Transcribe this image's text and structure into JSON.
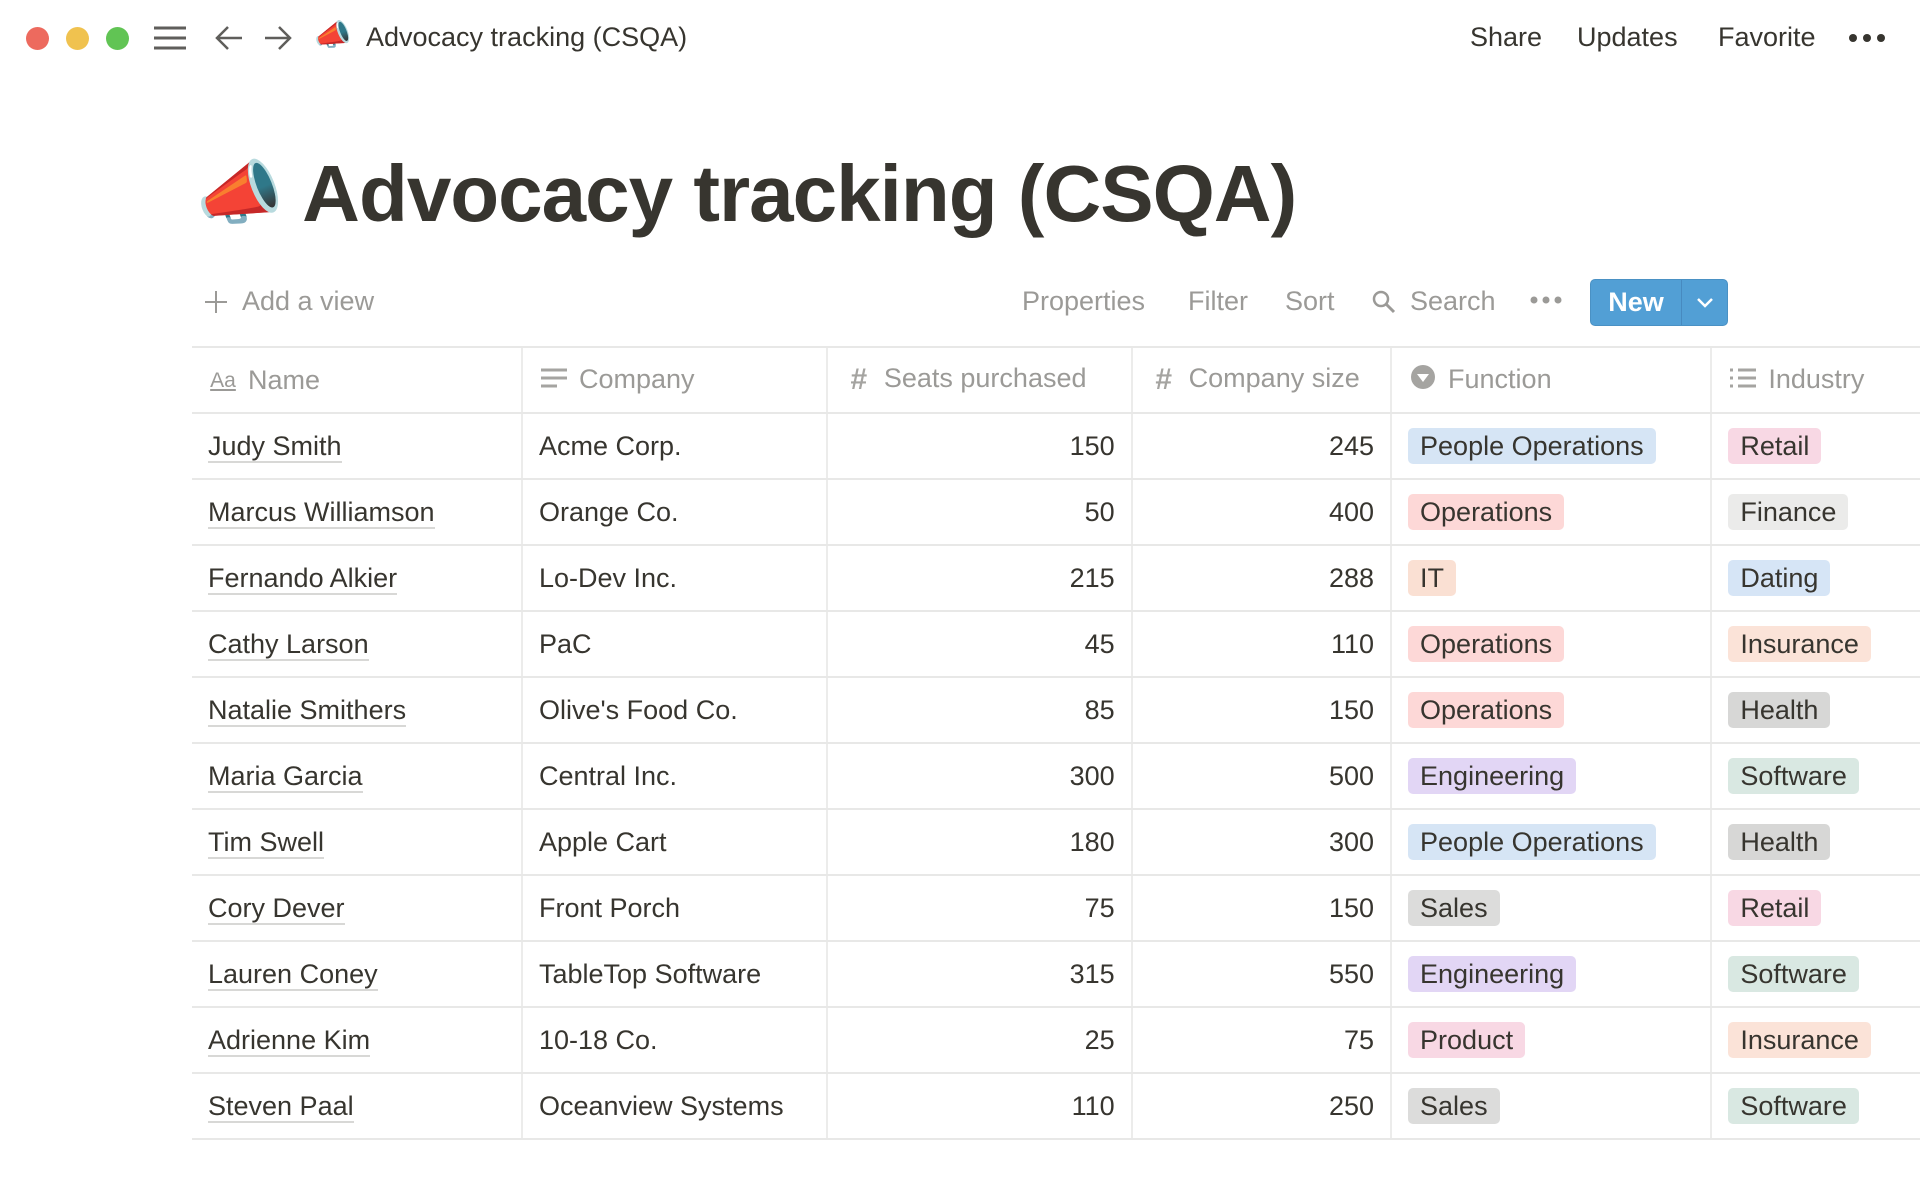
{
  "topbar": {
    "title": "Advocacy tracking (CSQA)",
    "share": "Share",
    "updates": "Updates",
    "favorite": "Favorite",
    "emoji": "📣"
  },
  "page": {
    "title": "Advocacy tracking (CSQA)",
    "emoji": "📣"
  },
  "toolbar": {
    "add_view": "Add a view",
    "properties": "Properties",
    "filter": "Filter",
    "sort": "Sort",
    "search": "Search",
    "new": "New"
  },
  "columns": [
    "Name",
    "Company",
    "Seats purchased",
    "Company size",
    "Function",
    "Industry"
  ],
  "tag_colors": {
    "People Operations": "#d6e5f5",
    "Operations": "#fdd8d7",
    "IT": "#fae0d3",
    "Engineering": "#e2d6f5",
    "Sales": "#dcdcdb",
    "Product": "#f8d8e4",
    "Retail": "#f8d8e4",
    "Finance": "#ebebea",
    "Dating": "#d6e5f6",
    "Insurance": "#fbe3d8",
    "Health": "#d7d7d6",
    "Software": "#d9e8e2"
  },
  "rows": [
    {
      "name": "Judy Smith",
      "company": "Acme Corp.",
      "seats": "150",
      "size": "245",
      "function": "People Operations",
      "industry": "Retail"
    },
    {
      "name": "Marcus Williamson",
      "company": "Orange Co.",
      "seats": "50",
      "size": "400",
      "function": "Operations",
      "industry": "Finance"
    },
    {
      "name": "Fernando Alkier",
      "company": "Lo-Dev Inc.",
      "seats": "215",
      "size": "288",
      "function": "IT",
      "industry": "Dating"
    },
    {
      "name": "Cathy Larson",
      "company": "PaC",
      "seats": "45",
      "size": "110",
      "function": "Operations",
      "industry": "Insurance"
    },
    {
      "name": "Natalie Smithers",
      "company": "Olive's Food Co.",
      "seats": "85",
      "size": "150",
      "function": "Operations",
      "industry": "Health"
    },
    {
      "name": "Maria Garcia",
      "company": "Central Inc.",
      "seats": "300",
      "size": "500",
      "function": "Engineering",
      "industry": "Software"
    },
    {
      "name": "Tim Swell",
      "company": "Apple Cart",
      "seats": "180",
      "size": "300",
      "function": "People Operations",
      "industry": "Health"
    },
    {
      "name": "Cory Dever",
      "company": "Front Porch",
      "seats": "75",
      "size": "150",
      "function": "Sales",
      "industry": "Retail"
    },
    {
      "name": "Lauren Coney",
      "company": "TableTop Software",
      "seats": "315",
      "size": "550",
      "function": "Engineering",
      "industry": "Software"
    },
    {
      "name": "Adrienne Kim",
      "company": "10-18 Co.",
      "seats": "25",
      "size": "75",
      "function": "Product",
      "industry": "Insurance"
    },
    {
      "name": "Steven Paal",
      "company": "Oceanview Systems",
      "seats": "110",
      "size": "250",
      "function": "Sales",
      "industry": "Software"
    }
  ]
}
